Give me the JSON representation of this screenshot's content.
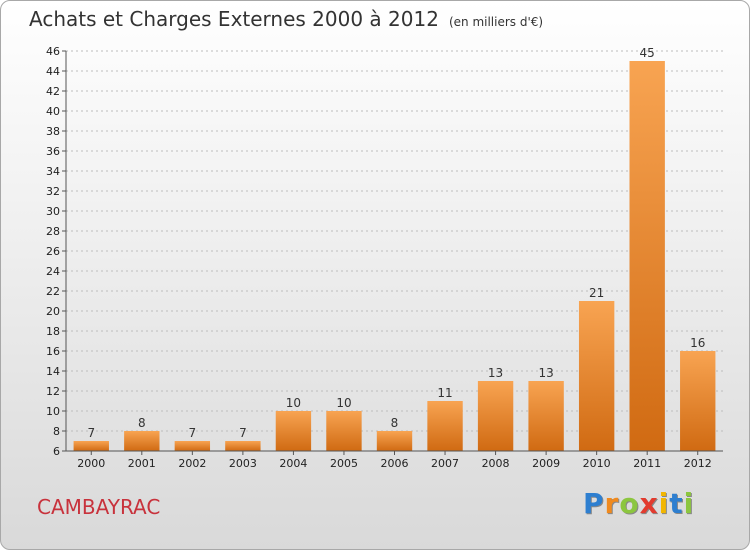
{
  "title": "Achats et Charges Externes 2000 à 2012",
  "unit": "(en milliers d'€)",
  "location": "CAMBAYRAC",
  "logo": {
    "text": "Proxiti",
    "letters": [
      "P",
      "r",
      "o",
      "x",
      "i",
      "t",
      "i"
    ],
    "colors": [
      "#2e7fd0",
      "#f08a1e",
      "#8cc63f",
      "#e23b2e",
      "#f2b600",
      "#2e7fd0",
      "#8cc63f"
    ]
  },
  "colors": {
    "bar_top": "#f8a452",
    "bar_bottom": "#d06a12",
    "grid": "#bdbdbd"
  },
  "chart_data": {
    "type": "bar",
    "title": "Achats et Charges Externes 2000 à 2012",
    "subtitle": "(en milliers d'€)",
    "categories": [
      "2000",
      "2001",
      "2002",
      "2003",
      "2004",
      "2005",
      "2006",
      "2007",
      "2008",
      "2009",
      "2010",
      "2011",
      "2012"
    ],
    "values": [
      7,
      8,
      7,
      7,
      10,
      10,
      8,
      11,
      13,
      13,
      21,
      45,
      16
    ],
    "ylim": [
      6,
      46
    ],
    "yticks": [
      6,
      8,
      10,
      12,
      14,
      16,
      18,
      20,
      22,
      24,
      26,
      28,
      30,
      32,
      34,
      36,
      38,
      40,
      42,
      44,
      46
    ],
    "grid": true,
    "xlabel": "",
    "ylabel": ""
  }
}
